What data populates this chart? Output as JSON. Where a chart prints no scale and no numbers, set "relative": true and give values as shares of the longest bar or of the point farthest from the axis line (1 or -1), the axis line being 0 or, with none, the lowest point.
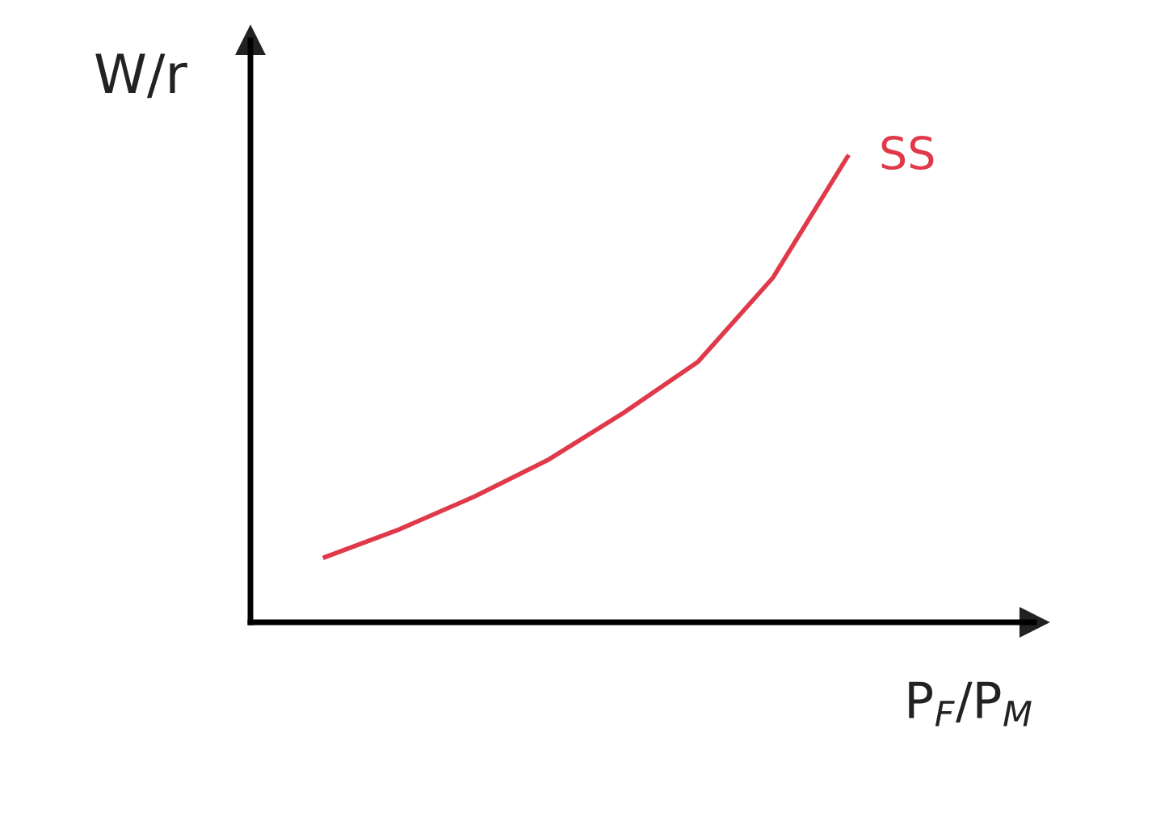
{
  "chart_data": {
    "type": "line",
    "relative": true,
    "xlabel": "P$_{F}$/P$_{M}$",
    "ylabel": "W/r",
    "categories": [
      null,
      null,
      null,
      null,
      null,
      null,
      null,
      null
    ],
    "series": [
      {
        "name": "SS",
        "color": "#e03a4a",
        "values": [
          0.14,
          0.2,
          0.27,
          0.35,
          0.45,
          0.56,
          0.74,
          1
        ]
      }
    ],
    "grid": false,
    "legend": false,
    "marker": "none",
    "line_style": "solid"
  }
}
